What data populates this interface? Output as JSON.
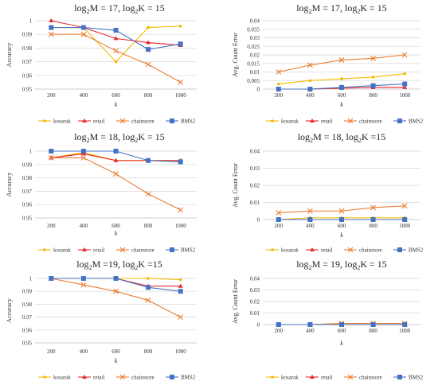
{
  "colors": {
    "kosarak": "#f5b800",
    "retail": "#e8282d",
    "chainstore": "#ed7d31",
    "BMS2": "#4472c4",
    "gridline": "#d9d9d9",
    "axis": "#bfbfbf"
  },
  "chart_data": [
    {
      "type": "line",
      "title": {
        "base1": "log",
        "sub1": "2",
        "mid": "M = 17, log",
        "sub2": "2",
        "end": "K = 15"
      },
      "xlabel": "k",
      "ylabel": "Accuracy",
      "categories": [
        "200",
        "400",
        "600",
        "800",
        "1000"
      ],
      "yticks": [
        "0.95",
        "0.96",
        "0.97",
        "0.98",
        "0.99",
        "1"
      ],
      "ylim": [
        0.95,
        1.0
      ],
      "grid": true,
      "legend_position": "bottom",
      "series": [
        {
          "name": "kosarak",
          "values": [
            0.995,
            0.995,
            0.97,
            0.995,
            0.996
          ],
          "marker": "circle"
        },
        {
          "name": "retail",
          "values": [
            1.0,
            0.995,
            0.987,
            0.984,
            0.982
          ],
          "marker": "triangle"
        },
        {
          "name": "chainstore",
          "values": [
            0.99,
            0.99,
            0.978,
            0.968,
            0.955
          ],
          "marker": "x"
        },
        {
          "name": "BMS2",
          "values": [
            0.995,
            0.995,
            0.993,
            0.979,
            0.983
          ],
          "marker": "square"
        }
      ]
    },
    {
      "type": "line",
      "title": {
        "base1": "log",
        "sub1": "2",
        "mid": "M = 17, log",
        "sub2": "2",
        "end": "K = 15"
      },
      "xlabel": "k",
      "ylabel": "Avg. Count Error",
      "categories": [
        "200",
        "400",
        "600",
        "800",
        "1000"
      ],
      "yticks": [
        "0",
        "0.005",
        "0.01",
        "0.015",
        "0.02",
        "0.025",
        "0.03",
        "0.035",
        "0.04"
      ],
      "ylim": [
        0,
        0.04
      ],
      "grid": true,
      "legend_position": "bottom",
      "series": [
        {
          "name": "kosarak",
          "values": [
            0.003,
            0.005,
            0.006,
            0.007,
            0.009
          ],
          "marker": "circle"
        },
        {
          "name": "retail",
          "values": [
            0.0,
            0.0,
            0.0005,
            0.001,
            0.001
          ],
          "marker": "triangle"
        },
        {
          "name": "chainstore",
          "values": [
            0.01,
            0.014,
            0.017,
            0.018,
            0.02
          ],
          "marker": "x"
        },
        {
          "name": "BMS2",
          "values": [
            0.0,
            0.0,
            0.001,
            0.002,
            0.003
          ],
          "marker": "square"
        }
      ]
    },
    {
      "type": "line",
      "title": {
        "base1": "log",
        "sub1": "2",
        "mid": "M = 18, log",
        "sub2": "2",
        "end": "K = 15"
      },
      "xlabel": "k",
      "ylabel": "Accuracy",
      "categories": [
        "200",
        "400",
        "600",
        "800",
        "1000"
      ],
      "yticks": [
        "0.95",
        "0.96",
        "0.97",
        "0.98",
        "0.99",
        "1"
      ],
      "ylim": [
        0.95,
        1.0
      ],
      "grid": true,
      "legend_position": "bottom",
      "series": [
        {
          "name": "kosarak",
          "values": [
            0.995,
            0.999,
            0.993,
            0.993,
            0.993
          ],
          "marker": "circle"
        },
        {
          "name": "retail",
          "values": [
            0.995,
            0.998,
            0.993,
            0.993,
            0.993
          ],
          "marker": "triangle"
        },
        {
          "name": "chainstore",
          "values": [
            0.995,
            0.995,
            0.983,
            0.968,
            0.956
          ],
          "marker": "x"
        },
        {
          "name": "BMS2",
          "values": [
            1.0,
            1.0,
            1.0,
            0.993,
            0.992
          ],
          "marker": "square"
        }
      ]
    },
    {
      "type": "line",
      "title": {
        "base1": "log",
        "sub1": "2",
        "mid": "M = 18, log",
        "sub2": "2",
        "end": "K =15"
      },
      "xlabel": "k",
      "ylabel": "Avg. Count Error",
      "categories": [
        "200",
        "400",
        "600",
        "800",
        "1000"
      ],
      "yticks": [
        "0",
        "0.01",
        "0.02",
        "0.03",
        "0.04"
      ],
      "ylim": [
        0,
        0.04
      ],
      "grid": true,
      "legend_position": "bottom",
      "series": [
        {
          "name": "kosarak",
          "values": [
            0.0,
            0.001,
            0.001,
            0.001,
            0.001
          ],
          "marker": "circle"
        },
        {
          "name": "retail",
          "values": [
            0.0,
            0.0,
            0.0,
            0.0,
            0.0
          ],
          "marker": "triangle"
        },
        {
          "name": "chainstore",
          "values": [
            0.004,
            0.005,
            0.005,
            0.007,
            0.008
          ],
          "marker": "x"
        },
        {
          "name": "BMS2",
          "values": [
            0.0,
            0.0,
            0.0,
            0.0,
            0.0
          ],
          "marker": "square"
        }
      ]
    },
    {
      "type": "line",
      "title": {
        "base1": "log",
        "sub1": "2",
        "mid": "M =19, log",
        "sub2": "2",
        "end": "K =15"
      },
      "xlabel": "k",
      "ylabel": "Accuracy",
      "categories": [
        "200",
        "400",
        "600",
        "800",
        "1000"
      ],
      "yticks": [
        "0.95",
        "0.96",
        "0.97",
        "0.98",
        "0.99",
        "1"
      ],
      "ylim": [
        0.95,
        1.0
      ],
      "grid": true,
      "legend_position": "bottom",
      "series": [
        {
          "name": "kosarak",
          "values": [
            1.0,
            1.0,
            1.0,
            1.0,
            0.999
          ],
          "marker": "circle"
        },
        {
          "name": "retail",
          "values": [
            1.0,
            1.0,
            1.0,
            0.994,
            0.994
          ],
          "marker": "triangle"
        },
        {
          "name": "chainstore",
          "values": [
            1.0,
            0.995,
            0.99,
            0.983,
            0.97
          ],
          "marker": "x"
        },
        {
          "name": "BMS2",
          "values": [
            1.0,
            1.0,
            1.0,
            0.993,
            0.99
          ],
          "marker": "square"
        }
      ]
    },
    {
      "type": "line",
      "title": {
        "base1": "log",
        "sub1": "2",
        "mid": "M = 19, log",
        "sub2": "2",
        "end": "K = 15"
      },
      "xlabel": "k",
      "ylabel": "Avg. Count Error",
      "categories": [
        "200",
        "400",
        "600",
        "800",
        "1000"
      ],
      "yticks": [
        "0",
        "0.01",
        "0.02",
        "0.03",
        "0.04"
      ],
      "ylim": [
        0,
        0.04
      ],
      "grid": true,
      "legend_position": "bottom",
      "series": [
        {
          "name": "kosarak",
          "values": [
            0.0,
            0.0,
            0.001,
            0.001,
            0.001
          ],
          "marker": "circle"
        },
        {
          "name": "retail",
          "values": [
            0.0,
            0.0,
            0.0,
            0.0,
            0.0
          ],
          "marker": "triangle"
        },
        {
          "name": "chainstore",
          "values": [
            0.0,
            0.0,
            0.001,
            0.001,
            0.001
          ],
          "marker": "x"
        },
        {
          "name": "BMS2",
          "values": [
            0.0,
            0.0,
            0.0,
            0.0,
            0.0
          ],
          "marker": "square"
        }
      ]
    }
  ]
}
